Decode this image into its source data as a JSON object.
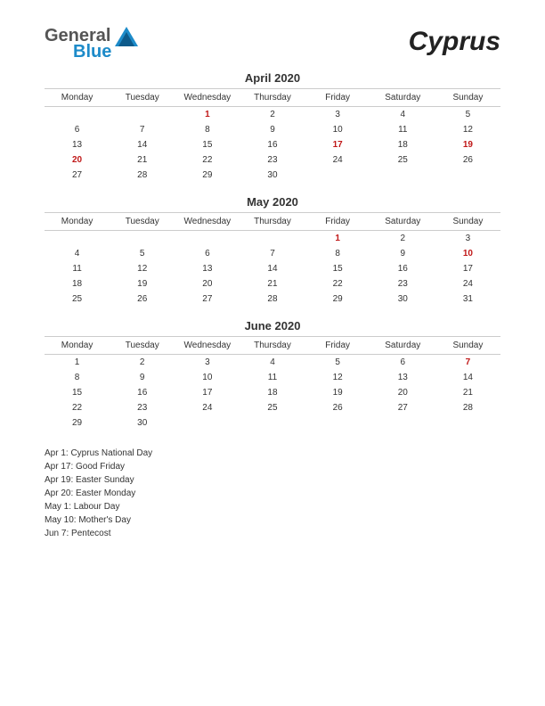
{
  "logo": {
    "text1": "General",
    "text2": "Blue",
    "color1": "#555555",
    "color2": "#1d8bc9",
    "icon_color": "#1d8bc9"
  },
  "title": "Cyprus",
  "weekdays": [
    "Monday",
    "Tuesday",
    "Wednesday",
    "Thursday",
    "Friday",
    "Saturday",
    "Sunday"
  ],
  "style": {
    "background_color": "#ffffff",
    "text_color": "#333333",
    "holiday_color": "#c01818",
    "border_color": "#cccccc",
    "title_fontsize": 30,
    "month_title_fontsize": 13,
    "weekday_fontsize": 10,
    "cell_fontsize": 10,
    "holiday_list_fontsize": 10
  },
  "months": [
    {
      "title": "April 2020",
      "weeks": [
        [
          {
            "d": ""
          },
          {
            "d": ""
          },
          {
            "d": "1",
            "hl": true
          },
          {
            "d": "2"
          },
          {
            "d": "3"
          },
          {
            "d": "4"
          },
          {
            "d": "5"
          }
        ],
        [
          {
            "d": "6"
          },
          {
            "d": "7"
          },
          {
            "d": "8"
          },
          {
            "d": "9"
          },
          {
            "d": "10"
          },
          {
            "d": "11"
          },
          {
            "d": "12"
          }
        ],
        [
          {
            "d": "13"
          },
          {
            "d": "14"
          },
          {
            "d": "15"
          },
          {
            "d": "16"
          },
          {
            "d": "17",
            "hl": true
          },
          {
            "d": "18"
          },
          {
            "d": "19",
            "hl": true
          }
        ],
        [
          {
            "d": "20",
            "hl": true
          },
          {
            "d": "21"
          },
          {
            "d": "22"
          },
          {
            "d": "23"
          },
          {
            "d": "24"
          },
          {
            "d": "25"
          },
          {
            "d": "26"
          }
        ],
        [
          {
            "d": "27"
          },
          {
            "d": "28"
          },
          {
            "d": "29"
          },
          {
            "d": "30"
          },
          {
            "d": ""
          },
          {
            "d": ""
          },
          {
            "d": ""
          }
        ]
      ]
    },
    {
      "title": "May 2020",
      "weeks": [
        [
          {
            "d": ""
          },
          {
            "d": ""
          },
          {
            "d": ""
          },
          {
            "d": ""
          },
          {
            "d": "1",
            "hl": true
          },
          {
            "d": "2"
          },
          {
            "d": "3"
          }
        ],
        [
          {
            "d": "4"
          },
          {
            "d": "5"
          },
          {
            "d": "6"
          },
          {
            "d": "7"
          },
          {
            "d": "8"
          },
          {
            "d": "9"
          },
          {
            "d": "10",
            "hl": true
          }
        ],
        [
          {
            "d": "11"
          },
          {
            "d": "12"
          },
          {
            "d": "13"
          },
          {
            "d": "14"
          },
          {
            "d": "15"
          },
          {
            "d": "16"
          },
          {
            "d": "17"
          }
        ],
        [
          {
            "d": "18"
          },
          {
            "d": "19"
          },
          {
            "d": "20"
          },
          {
            "d": "21"
          },
          {
            "d": "22"
          },
          {
            "d": "23"
          },
          {
            "d": "24"
          }
        ],
        [
          {
            "d": "25"
          },
          {
            "d": "26"
          },
          {
            "d": "27"
          },
          {
            "d": "28"
          },
          {
            "d": "29"
          },
          {
            "d": "30"
          },
          {
            "d": "31"
          }
        ]
      ]
    },
    {
      "title": "June 2020",
      "weeks": [
        [
          {
            "d": "1"
          },
          {
            "d": "2"
          },
          {
            "d": "3"
          },
          {
            "d": "4"
          },
          {
            "d": "5"
          },
          {
            "d": "6"
          },
          {
            "d": "7",
            "hl": true
          }
        ],
        [
          {
            "d": "8"
          },
          {
            "d": "9"
          },
          {
            "d": "10"
          },
          {
            "d": "11"
          },
          {
            "d": "12"
          },
          {
            "d": "13"
          },
          {
            "d": "14"
          }
        ],
        [
          {
            "d": "15"
          },
          {
            "d": "16"
          },
          {
            "d": "17"
          },
          {
            "d": "18"
          },
          {
            "d": "19"
          },
          {
            "d": "20"
          },
          {
            "d": "21"
          }
        ],
        [
          {
            "d": "22"
          },
          {
            "d": "23"
          },
          {
            "d": "24"
          },
          {
            "d": "25"
          },
          {
            "d": "26"
          },
          {
            "d": "27"
          },
          {
            "d": "28"
          }
        ],
        [
          {
            "d": "29"
          },
          {
            "d": "30"
          },
          {
            "d": ""
          },
          {
            "d": ""
          },
          {
            "d": ""
          },
          {
            "d": ""
          },
          {
            "d": ""
          }
        ]
      ]
    }
  ],
  "holidays": [
    "Apr 1: Cyprus National Day",
    "Apr 17: Good Friday",
    "Apr 19: Easter Sunday",
    "Apr 20: Easter Monday",
    "May 1: Labour Day",
    "May 10: Mother's Day",
    "Jun 7: Pentecost"
  ]
}
